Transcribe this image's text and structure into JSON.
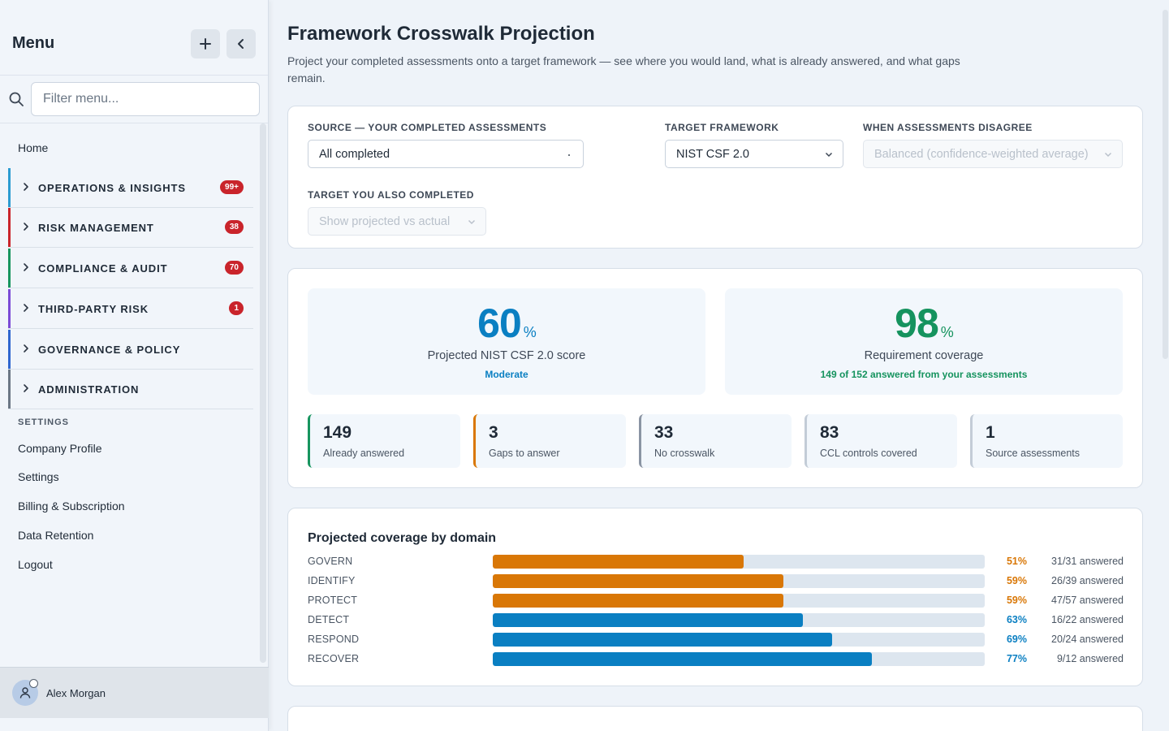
{
  "sidebar": {
    "title": "Menu",
    "search_placeholder": "Filter menu...",
    "home": "Home",
    "groups": [
      {
        "label": "OPERATIONS & INSIGHTS",
        "badge": "99+",
        "color": "#2b9bd1"
      },
      {
        "label": "RISK MANAGEMENT",
        "badge": "38",
        "color": "#c9242b"
      },
      {
        "label": "COMPLIANCE & AUDIT",
        "badge": "70",
        "color": "#17955f"
      },
      {
        "label": "THIRD-PARTY RISK",
        "badge": "1",
        "color": "#7b4bd6"
      },
      {
        "label": "GOVERNANCE & POLICY",
        "badge": "",
        "color": "#2f66cf"
      },
      {
        "label": "ADMINISTRATION",
        "badge": "",
        "color": "#6b7785"
      }
    ],
    "settings_heading": "SETTINGS",
    "settings_links": [
      "Company Profile",
      "Settings",
      "Billing & Subscription",
      "Data Retention",
      "Logout"
    ],
    "user": {
      "name": "Alex Morgan"
    }
  },
  "page": {
    "title": "Framework Crosswalk Projection",
    "description": "Project your completed assessments onto a target framework — see where you would land, what is already answered, and what gaps remain."
  },
  "filters": {
    "source_label": "SOURCE — YOUR COMPLETED ASSESSMENTS",
    "source_value": "All completed",
    "target_label": "TARGET FRAMEWORK",
    "target_value": "NIST CSF 2.0",
    "disagree_label": "WHEN ASSESSMENTS DISAGREE",
    "disagree_value": "Balanced (confidence-weighted average)",
    "also_label": "TARGET YOU ALSO COMPLETED",
    "also_value": "Show projected vs actual"
  },
  "kpis": {
    "score": {
      "value": "60",
      "unit": "%",
      "label": "Projected NIST CSF 2.0 score",
      "sub": "Moderate",
      "color": "#0a7fc2"
    },
    "coverage": {
      "value": "98",
      "unit": "%",
      "label": "Requirement coverage",
      "sub": "149 of 152 answered from your assessments",
      "color": "#15935e"
    }
  },
  "stats": [
    {
      "value": "149",
      "label": "Already answered",
      "color": "#17955f"
    },
    {
      "value": "3",
      "label": "Gaps to answer",
      "color": "#d97706"
    },
    {
      "value": "33",
      "label": "No crosswalk",
      "color": "#8a94a3"
    },
    {
      "value": "83",
      "label": "CCL controls covered",
      "color": "#c3ccd7"
    },
    {
      "value": "1",
      "label": "Source assessments",
      "color": "#c3ccd7"
    }
  ],
  "chart_data": {
    "type": "bar",
    "title": "Projected coverage by domain",
    "categories": [
      "GOVERN",
      "IDENTIFY",
      "PROTECT",
      "DETECT",
      "RESPOND",
      "RECOVER"
    ],
    "values": [
      51,
      59,
      59,
      63,
      69,
      77
    ],
    "value_labels": [
      "51%",
      "59%",
      "59%",
      "63%",
      "69%",
      "77%"
    ],
    "answered": [
      "31/31 answered",
      "26/39 answered",
      "47/57 answered",
      "16/22 answered",
      "20/24 answered",
      "9/12 answered"
    ],
    "ylim": [
      0,
      100
    ],
    "colors": {
      "below_60": "#d97706",
      "at_or_above_60": "#0a7fc2"
    }
  }
}
